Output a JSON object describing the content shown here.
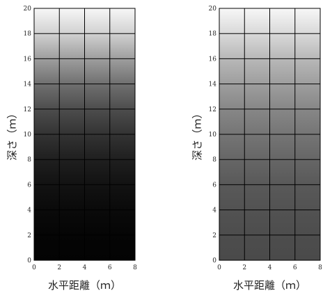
{
  "charts": [
    {
      "type": "heatmap",
      "xlabel": "水平距離（ｍ）",
      "ylabel": "深さ（ｍ）",
      "xlim": [
        0,
        8
      ],
      "ylim": [
        0,
        20
      ],
      "xticks": [
        0,
        2,
        4,
        6,
        8
      ],
      "yticks": [
        0,
        2,
        4,
        6,
        8,
        10,
        12,
        14,
        16,
        18,
        20
      ],
      "grid": true,
      "colormap": "grayscale",
      "shade_by_depth": [
        {
          "depth": 20,
          "value": 0.97
        },
        {
          "depth": 18,
          "value": 0.82
        },
        {
          "depth": 16,
          "value": 0.62
        },
        {
          "depth": 14,
          "value": 0.44
        },
        {
          "depth": 12,
          "value": 0.3
        },
        {
          "depth": 10,
          "value": 0.2
        },
        {
          "depth": 8,
          "value": 0.12
        },
        {
          "depth": 6,
          "value": 0.07
        },
        {
          "depth": 4,
          "value": 0.04
        },
        {
          "depth": 2,
          "value": 0.02
        },
        {
          "depth": 0,
          "value": 0.01
        }
      ]
    },
    {
      "type": "heatmap",
      "xlabel": "水平距離（ｍ）",
      "ylabel": "深さ（ｍ）",
      "xlim": [
        0,
        8
      ],
      "ylim": [
        0,
        20
      ],
      "xticks": [
        0,
        2,
        4,
        6,
        8
      ],
      "yticks": [
        0,
        2,
        4,
        6,
        8,
        10,
        12,
        14,
        16,
        18,
        20
      ],
      "grid": true,
      "colormap": "grayscale",
      "shade_by_depth": [
        {
          "depth": 20,
          "value": 0.97
        },
        {
          "depth": 18,
          "value": 0.85
        },
        {
          "depth": 16,
          "value": 0.72
        },
        {
          "depth": 14,
          "value": 0.62
        },
        {
          "depth": 12,
          "value": 0.53
        },
        {
          "depth": 10,
          "value": 0.46
        },
        {
          "depth": 8,
          "value": 0.4
        },
        {
          "depth": 6,
          "value": 0.35
        },
        {
          "depth": 4,
          "value": 0.32
        },
        {
          "depth": 2,
          "value": 0.3
        },
        {
          "depth": 0,
          "value": 0.29
        }
      ]
    }
  ]
}
